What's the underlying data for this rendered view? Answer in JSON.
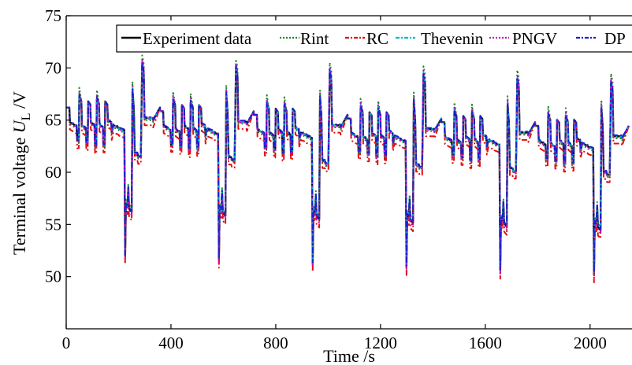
{
  "chart_data": {
    "type": "line",
    "xlabel": "Time /s",
    "ylabel_prefix": "Terminal voltage ",
    "ylabel_symbol": "U",
    "ylabel_subscript": "L",
    "ylabel_unit": " /V",
    "xlim": [
      0,
      2160
    ],
    "ylim": [
      45,
      75
    ],
    "xticks": [
      0,
      400,
      800,
      1200,
      1600,
      2000
    ],
    "yticks": [
      50,
      55,
      60,
      65,
      70,
      75
    ],
    "grid": false,
    "legend_position": "top",
    "series": [
      {
        "name": "Experiment data",
        "color": "#000000",
        "dash": "solid",
        "peak_offset": 0,
        "dip_offset": 0,
        "load_offset": 0
      },
      {
        "name": "Rint",
        "color": "#1a8a1a",
        "dash": "dot",
        "peak_offset": 0.9,
        "dip_offset": 0.4,
        "load_offset": -0.2
      },
      {
        "name": "RC",
        "color": "#e01010",
        "dash": "dashdot",
        "peak_offset": -0.5,
        "dip_offset": -0.8,
        "load_offset": -0.7
      },
      {
        "name": "Thevenin",
        "color": "#00b8c8",
        "dash": "dashdot",
        "peak_offset": 0.3,
        "dip_offset": 0.2,
        "load_offset": 0.0
      },
      {
        "name": "PNGV",
        "color": "#c010c0",
        "dash": "dot",
        "peak_offset": 0.5,
        "dip_offset": -0.3,
        "load_offset": -0.1
      },
      {
        "name": "DP",
        "color": "#1a20d0",
        "dash": "dashdot",
        "peak_offset": 0.2,
        "dip_offset": 0.1,
        "load_offset": 0.1
      }
    ],
    "cycle_period": 358,
    "cycle_count": 6,
    "cycle_profile": [
      [
        0,
        66.2
      ],
      [
        12,
        66.2
      ],
      [
        14,
        64.8
      ],
      [
        40,
        64.4
      ],
      [
        42,
        63.0
      ],
      [
        48,
        63.0
      ],
      [
        50,
        67.2
      ],
      [
        58,
        66.8
      ],
      [
        60,
        64.5
      ],
      [
        75,
        64.2
      ],
      [
        77,
        62.8
      ],
      [
        82,
        62.8
      ],
      [
        84,
        66.8
      ],
      [
        92,
        66.5
      ],
      [
        94,
        64.8
      ],
      [
        108,
        64.5
      ],
      [
        110,
        62.5
      ],
      [
        115,
        62.5
      ],
      [
        117,
        67.0
      ],
      [
        125,
        66.6
      ],
      [
        127,
        64.6
      ],
      [
        140,
        64.3
      ],
      [
        142,
        62.6
      ],
      [
        147,
        62.6
      ],
      [
        149,
        66.8
      ],
      [
        157,
        66.5
      ],
      [
        159,
        65.0
      ],
      [
        172,
        64.8
      ],
      [
        174,
        63.8
      ],
      [
        180,
        64.5
      ],
      [
        200,
        64.3
      ],
      [
        202,
        64.2
      ],
      [
        222,
        64.0
      ],
      [
        225,
        52.0
      ],
      [
        228,
        57.0
      ],
      [
        234,
        56.8
      ],
      [
        237,
        58.5
      ],
      [
        240,
        56.5
      ],
      [
        250,
        56.2
      ],
      [
        253,
        67.8
      ],
      [
        258,
        66.2
      ],
      [
        262,
        61.8
      ],
      [
        272,
        61.8
      ],
      [
        275,
        61.5
      ],
      [
        285,
        61.5
      ],
      [
        290,
        70.3
      ],
      [
        296,
        69.5
      ],
      [
        299,
        65.2
      ],
      [
        330,
        65.2
      ],
      [
        332,
        65.0
      ],
      [
        358,
        66.2
      ]
    ]
  },
  "legend_sample_markers": [
    "Experiment data",
    "Rint",
    "RC",
    "Thevenin",
    "PNGV",
    "DP"
  ]
}
